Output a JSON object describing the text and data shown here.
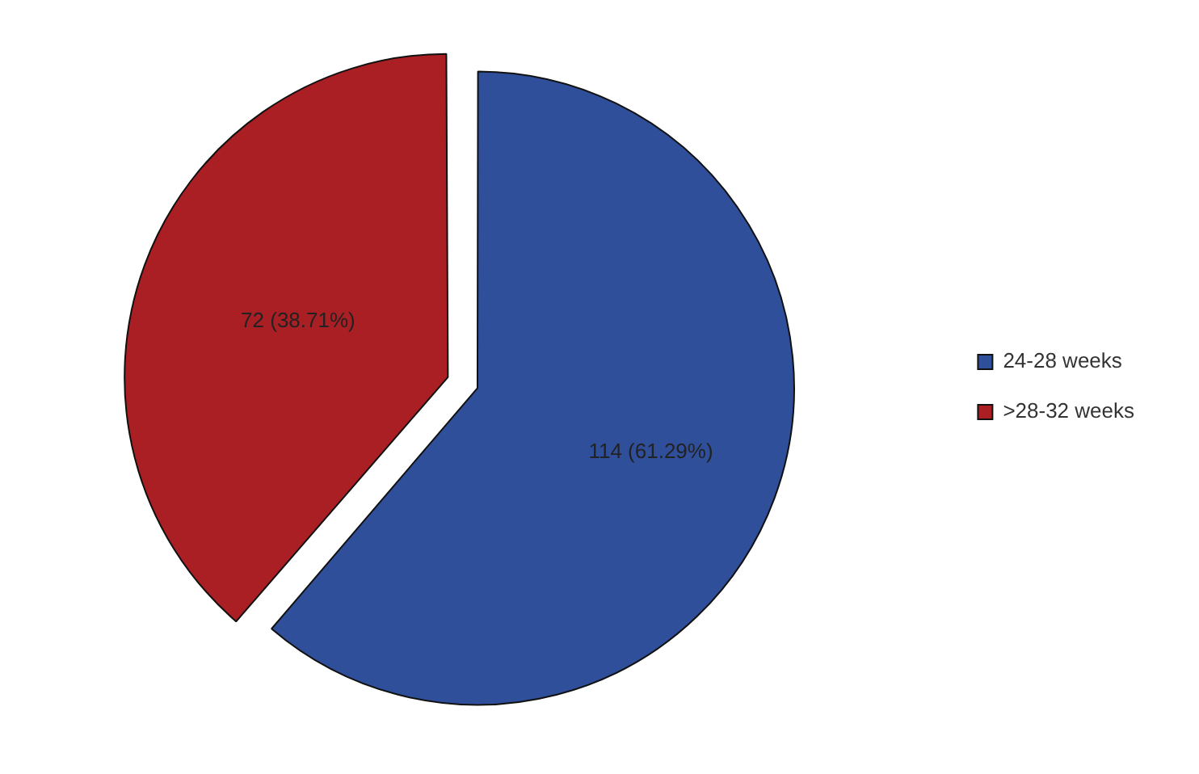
{
  "chart_data": {
    "type": "pie",
    "categories": [
      "24-28 weeks",
      ">28-32 weeks"
    ],
    "values": [
      114,
      72
    ],
    "colors": [
      "#2f4f9a",
      "#a91f24"
    ],
    "value_labels": [
      "114 (61.29%)",
      "72 (38.71%)"
    ],
    "legend": "right"
  }
}
